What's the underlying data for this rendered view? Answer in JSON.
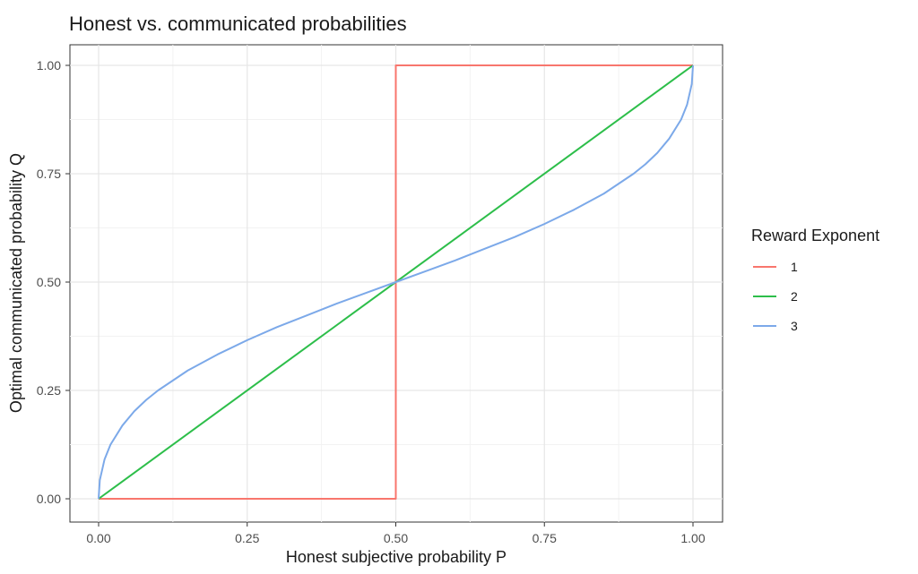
{
  "chart_data": {
    "type": "line",
    "title": "Honest vs. communicated probabilities",
    "xlabel": "Honest subjective probability P",
    "ylabel": "Optimal communicated probability Q",
    "xlim": [
      0,
      1
    ],
    "ylim": [
      0,
      1
    ],
    "x_ticks": [
      0,
      0.25,
      0.5,
      0.75,
      1
    ],
    "x_tick_labels": [
      "0.00",
      "0.25",
      "0.50",
      "0.75",
      "1.00"
    ],
    "y_ticks": [
      0,
      0.25,
      0.5,
      0.75,
      1
    ],
    "y_tick_labels": [
      "0.00",
      "0.25",
      "0.50",
      "0.75",
      "1.00"
    ],
    "grid": true,
    "legend_title": "Reward Exponent",
    "legend_position": "right",
    "series": [
      {
        "name": "1",
        "color": "#F8766D",
        "x": [
          0,
          0.5,
          0.5,
          1
        ],
        "y": [
          0,
          0,
          1,
          1
        ]
      },
      {
        "name": "2",
        "color": "#2DBE4A",
        "x": [
          0,
          1
        ],
        "y": [
          0,
          1
        ]
      },
      {
        "name": "3",
        "color": "#7CA9E9",
        "x": [
          0,
          0.002,
          0.01,
          0.02,
          0.04,
          0.06,
          0.08,
          0.1,
          0.15,
          0.2,
          0.25,
          0.3,
          0.35,
          0.4,
          0.45,
          0.5,
          0.55,
          0.6,
          0.65,
          0.7,
          0.75,
          0.8,
          0.85,
          0.9,
          0.92,
          0.94,
          0.96,
          0.98,
          0.99,
          0.998,
          1
        ],
        "y": [
          0,
          0.043,
          0.091,
          0.125,
          0.169,
          0.202,
          0.228,
          0.25,
          0.296,
          0.333,
          0.366,
          0.396,
          0.423,
          0.45,
          0.475,
          0.5,
          0.525,
          0.55,
          0.577,
          0.604,
          0.634,
          0.667,
          0.704,
          0.75,
          0.772,
          0.798,
          0.831,
          0.875,
          0.909,
          0.957,
          1
        ]
      }
    ]
  }
}
